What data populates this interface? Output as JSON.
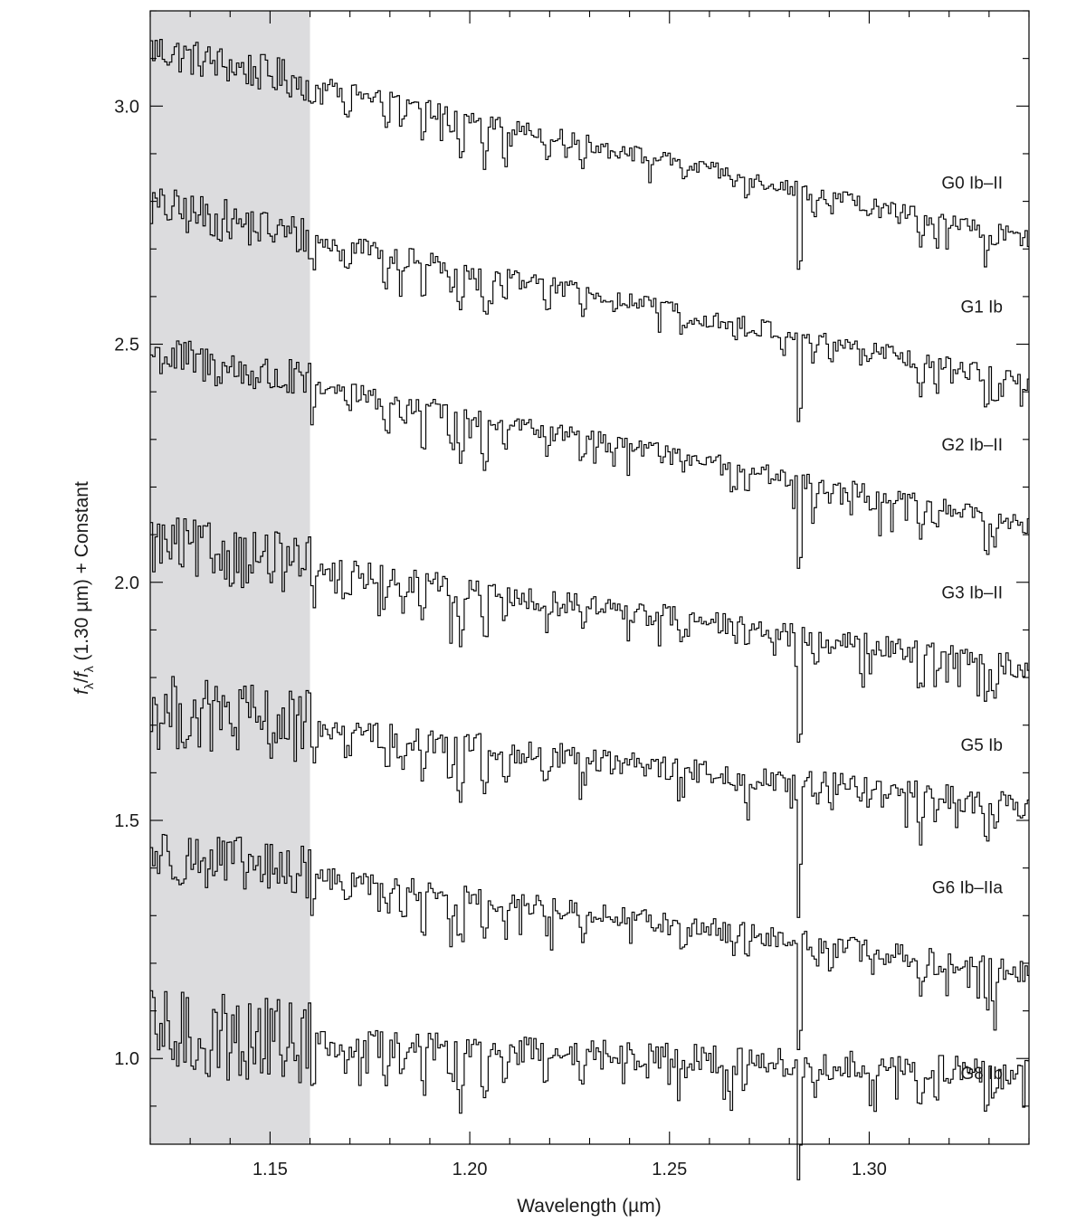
{
  "chart_data": {
    "type": "line",
    "xlabel": "Wavelength (µm)",
    "ylabel_parts": {
      "f1": "f",
      "sub1": "λ",
      "slash": "/",
      "f2": "f",
      "sub2": "λ",
      "rest": " (1.30 µm) + Constant"
    },
    "xlim": [
      1.12,
      1.34
    ],
    "ylim": [
      0.82,
      3.2
    ],
    "x_ticks": [
      {
        "value": 1.15,
        "label": "1.15"
      },
      {
        "value": 1.2,
        "label": "1.20"
      },
      {
        "value": 1.25,
        "label": "1.25"
      },
      {
        "value": 1.3,
        "label": "1.30"
      }
    ],
    "y_ticks": [
      {
        "value": 1.0,
        "label": "1.0"
      },
      {
        "value": 1.5,
        "label": "1.5"
      },
      {
        "value": 2.0,
        "label": "2.0"
      },
      {
        "value": 2.5,
        "label": "2.5"
      },
      {
        "value": 3.0,
        "label": "3.0"
      }
    ],
    "shaded_region": {
      "x_range": [
        1.12,
        1.16
      ],
      "color": "#dcdcde"
    },
    "series": [
      {
        "name": "G0 Ib–II",
        "label_value": 2.84,
        "start": 3.12,
        "end": 2.72,
        "noise_blue": 0.04,
        "noise": 0.018,
        "depth": 1.0
      },
      {
        "name": "G1 Ib",
        "label_value": 2.58,
        "start": 2.79,
        "end": 2.42,
        "noise_blue": 0.045,
        "noise": 0.02,
        "depth": 1.1
      },
      {
        "name": "G2 Ib–II",
        "label_value": 2.29,
        "start": 2.48,
        "end": 2.12,
        "noise_blue": 0.045,
        "noise": 0.02,
        "depth": 1.1
      },
      {
        "name": "G3 Ib–II",
        "label_value": 1.98,
        "start": 2.08,
        "end": 1.82,
        "noise_blue": 0.065,
        "noise": 0.025,
        "depth": 1.2
      },
      {
        "name": "G5 Ib",
        "label_value": 1.66,
        "start": 1.73,
        "end": 1.53,
        "noise_blue": 0.08,
        "noise": 0.028,
        "depth": 1.3
      },
      {
        "name": "G6 Ib–IIa",
        "label_value": 1.36,
        "start": 1.43,
        "end": 1.18,
        "noise_blue": 0.06,
        "noise": 0.024,
        "depth": 1.2
      },
      {
        "name": "G8 Ib",
        "label_value": 0.97,
        "start": 1.05,
        "end": 0.97,
        "noise_blue": 0.095,
        "noise": 0.03,
        "depth": 1.3
      }
    ],
    "absorption_lines": [
      {
        "x": 1.1605,
        "depth": 0.06
      },
      {
        "x": 1.169,
        "depth": 0.04
      },
      {
        "x": 1.1786,
        "depth": 0.05
      },
      {
        "x": 1.1828,
        "depth": 0.05
      },
      {
        "x": 1.188,
        "depth": 0.08
      },
      {
        "x": 1.195,
        "depth": 0.05
      },
      {
        "x": 1.1975,
        "depth": 0.09
      },
      {
        "x": 1.2035,
        "depth": 0.09
      },
      {
        "x": 1.2085,
        "depth": 0.06
      },
      {
        "x": 1.219,
        "depth": 0.04
      },
      {
        "x": 1.228,
        "depth": 0.04
      },
      {
        "x": 1.253,
        "depth": 0.03
      },
      {
        "x": 1.266,
        "depth": 0.03
      },
      {
        "x": 1.269,
        "depth": 0.03
      },
      {
        "x": 1.2822,
        "depth": 0.19
      },
      {
        "x": 1.286,
        "depth": 0.04
      },
      {
        "x": 1.29,
        "depth": 0.03
      },
      {
        "x": 1.3,
        "depth": 0.03
      },
      {
        "x": 1.3125,
        "depth": 0.07
      },
      {
        "x": 1.3165,
        "depth": 0.05
      },
      {
        "x": 1.329,
        "depth": 0.07
      },
      {
        "x": 1.331,
        "depth": 0.05
      }
    ]
  }
}
